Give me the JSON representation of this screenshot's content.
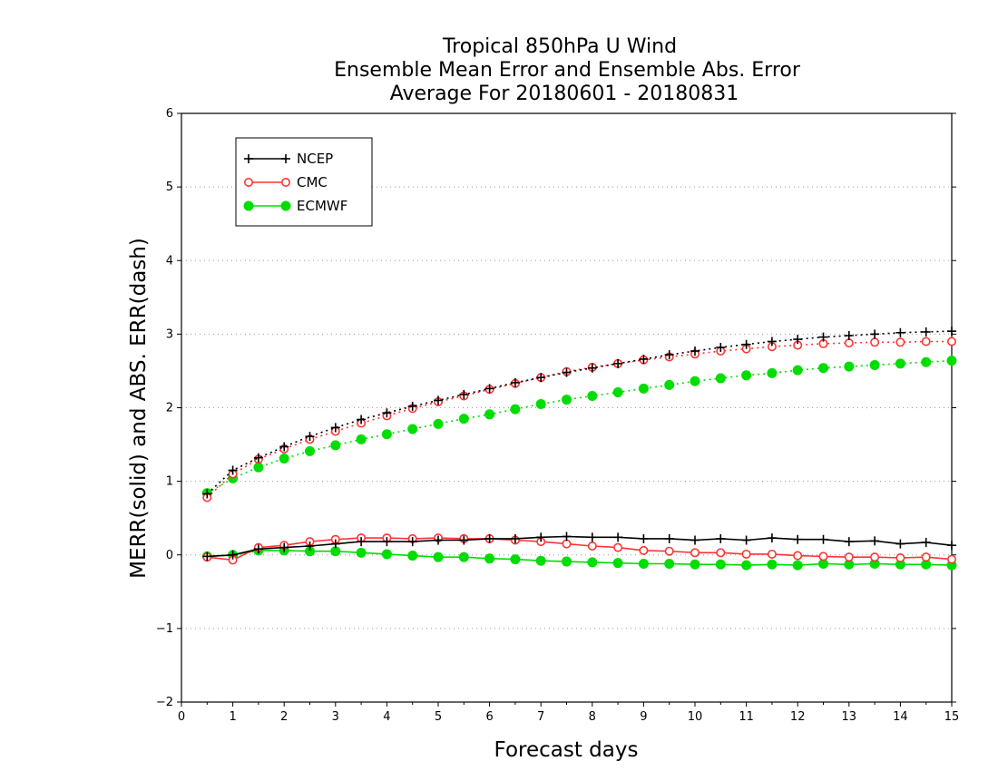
{
  "chart_data": {
    "type": "line",
    "title_lines": [
      "Tropical 850hPa U Wind",
      "Ensemble Mean Error and Ensemble Abs. Error",
      "Average For 20180601 - 20180831"
    ],
    "xlabel": "Forecast days",
    "ylabel": "MERR(solid) and ABS. ERR(dash)",
    "xlim": [
      0,
      15
    ],
    "ylim": [
      -2,
      6
    ],
    "xticks": [
      "0",
      "1",
      "2",
      "3",
      "4",
      "5",
      "6",
      "7",
      "8",
      "9",
      "10",
      "11",
      "12",
      "13",
      "14",
      "15"
    ],
    "yticks": [
      "−2",
      "−1",
      "0",
      "1",
      "2",
      "3",
      "4",
      "5",
      "6"
    ],
    "grid": "horizontal dotted",
    "legend_position": "top-left",
    "x": [
      0.5,
      1,
      1.5,
      2,
      2.5,
      3,
      3.5,
      4,
      4.5,
      5,
      5.5,
      6,
      6.5,
      7,
      7.5,
      8,
      8.5,
      9,
      9.5,
      10,
      10.5,
      11,
      11.5,
      12,
      12.5,
      13,
      13.5,
      14,
      14.5,
      15
    ],
    "series": [
      {
        "name": "NCEP",
        "color": "#000000",
        "marker": "plus",
        "merr": [
          -0.02,
          0.0,
          0.08,
          0.1,
          0.12,
          0.15,
          0.18,
          0.18,
          0.18,
          0.2,
          0.2,
          0.22,
          0.22,
          0.24,
          0.25,
          0.24,
          0.24,
          0.22,
          0.22,
          0.2,
          0.22,
          0.2,
          0.23,
          0.21,
          0.21,
          0.18,
          0.19,
          0.15,
          0.17,
          0.13
        ],
        "abs_err": [
          0.83,
          1.15,
          1.32,
          1.47,
          1.61,
          1.73,
          1.84,
          1.93,
          2.02,
          2.1,
          2.18,
          2.26,
          2.34,
          2.41,
          2.48,
          2.54,
          2.6,
          2.66,
          2.72,
          2.77,
          2.82,
          2.86,
          2.9,
          2.93,
          2.96,
          2.98,
          3.0,
          3.02,
          3.03,
          3.04
        ]
      },
      {
        "name": "CMC",
        "color": "#ff3333",
        "marker": "open-circle",
        "merr": [
          -0.03,
          -0.07,
          0.1,
          0.13,
          0.18,
          0.21,
          0.23,
          0.23,
          0.22,
          0.23,
          0.22,
          0.22,
          0.2,
          0.18,
          0.15,
          0.12,
          0.1,
          0.06,
          0.05,
          0.03,
          0.03,
          0.01,
          0.01,
          -0.01,
          -0.02,
          -0.03,
          -0.03,
          -0.04,
          -0.03,
          -0.06
        ],
        "abs_err": [
          0.78,
          1.1,
          1.3,
          1.44,
          1.57,
          1.68,
          1.79,
          1.89,
          1.99,
          2.08,
          2.16,
          2.25,
          2.33,
          2.41,
          2.49,
          2.55,
          2.6,
          2.65,
          2.69,
          2.73,
          2.77,
          2.8,
          2.83,
          2.85,
          2.87,
          2.88,
          2.89,
          2.89,
          2.9,
          2.9
        ]
      },
      {
        "name": "ECMWF",
        "color": "#00dd00",
        "marker": "filled-circle",
        "merr": [
          -0.02,
          0.0,
          0.06,
          0.06,
          0.05,
          0.05,
          0.03,
          0.01,
          -0.01,
          -0.03,
          -0.03,
          -0.05,
          -0.06,
          -0.08,
          -0.09,
          -0.1,
          -0.11,
          -0.12,
          -0.12,
          -0.13,
          -0.13,
          -0.14,
          -0.13,
          -0.14,
          -0.12,
          -0.13,
          -0.12,
          -0.13,
          -0.13,
          -0.14
        ],
        "abs_err": [
          0.84,
          1.04,
          1.19,
          1.31,
          1.41,
          1.49,
          1.57,
          1.64,
          1.71,
          1.78,
          1.85,
          1.91,
          1.98,
          2.05,
          2.11,
          2.16,
          2.21,
          2.26,
          2.31,
          2.36,
          2.4,
          2.44,
          2.47,
          2.51,
          2.54,
          2.56,
          2.58,
          2.6,
          2.62,
          2.64
        ]
      }
    ]
  }
}
